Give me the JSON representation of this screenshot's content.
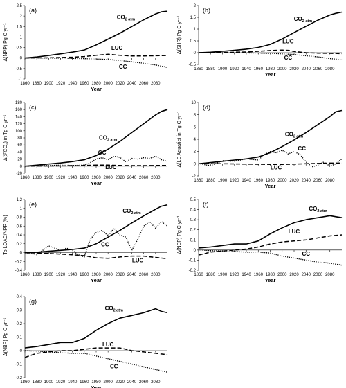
{
  "figure": {
    "xlabel": "Year",
    "series_labels": {
      "co2": "CO",
      "co2_sub": "2 atm",
      "luc": "LUC",
      "cc": "CC"
    }
  },
  "chart_data": [
    {
      "type": "line",
      "panel": "(a)",
      "ylabel": "Δ(NPP) Pg C yr⁻¹",
      "x_ticks": [
        1860,
        1880,
        1900,
        1920,
        1940,
        1960,
        1980,
        2000,
        2020,
        2040,
        2060,
        2080
      ],
      "y_ticks": [
        -1,
        -0.5,
        0,
        0.5,
        1,
        1.5,
        2,
        2.5
      ],
      "xlim": [
        1860,
        2100
      ],
      "ylim": [
        -1,
        2.5
      ],
      "series": [
        {
          "key": "co2",
          "style": "solid",
          "x": [
            1860,
            1880,
            1900,
            1920,
            1940,
            1960,
            1980,
            2000,
            2020,
            2040,
            2060,
            2080,
            2090,
            2100
          ],
          "y": [
            0,
            0.05,
            0.12,
            0.2,
            0.28,
            0.38,
            0.62,
            0.9,
            1.18,
            1.5,
            1.82,
            2.1,
            2.2,
            2.23
          ]
        },
        {
          "key": "luc",
          "style": "dashed",
          "x": [
            1860,
            1900,
            1940,
            1960,
            1980,
            2000,
            2020,
            2040,
            2060,
            2080,
            2100
          ],
          "y": [
            0,
            0.01,
            0.04,
            0.07,
            0.13,
            0.18,
            0.13,
            0.1,
            0.1,
            0.11,
            0.12
          ]
        },
        {
          "key": "cc",
          "style": "dotted",
          "x": [
            1860,
            1900,
            1940,
            1960,
            1980,
            2000,
            2020,
            2040,
            2060,
            2080,
            2100
          ],
          "y": [
            0,
            0,
            -0.02,
            -0.03,
            -0.05,
            -0.07,
            -0.12,
            -0.18,
            -0.25,
            -0.33,
            -0.45
          ]
        }
      ]
    },
    {
      "type": "line",
      "panel": "(b)",
      "ylabel": "Δ(SHR) Pg C yr⁻¹",
      "x_ticks": [
        1860,
        1880,
        1900,
        1920,
        1940,
        1960,
        1980,
        2000,
        2020,
        2040,
        2060,
        2080
      ],
      "y_ticks": [
        -0.5,
        0,
        0.5,
        1,
        1.5,
        2
      ],
      "xlim": [
        1860,
        2100
      ],
      "ylim": [
        -0.5,
        2
      ],
      "series": [
        {
          "key": "co2",
          "style": "solid",
          "x": [
            1860,
            1880,
            1900,
            1920,
            1940,
            1960,
            1980,
            2000,
            2020,
            2040,
            2060,
            2080,
            2090,
            2100
          ],
          "y": [
            0,
            0.02,
            0.06,
            0.1,
            0.15,
            0.22,
            0.35,
            0.58,
            0.85,
            1.12,
            1.38,
            1.6,
            1.67,
            1.72
          ]
        },
        {
          "key": "luc",
          "style": "dashed",
          "x": [
            1860,
            1900,
            1940,
            1960,
            1980,
            2000,
            2010,
            2020,
            2040,
            2060,
            2080,
            2100
          ],
          "y": [
            0,
            0.01,
            0.03,
            0.06,
            0.09,
            0.11,
            0.1,
            0.05,
            0,
            -0.02,
            -0.03,
            -0.04
          ]
        },
        {
          "key": "cc",
          "style": "dotted",
          "x": [
            1860,
            1900,
            1940,
            1980,
            2000,
            2020,
            2040,
            2060,
            2080,
            2100
          ],
          "y": [
            0,
            0,
            -0.01,
            -0.03,
            -0.05,
            -0.08,
            -0.13,
            -0.18,
            -0.25,
            -0.3
          ]
        }
      ]
    },
    {
      "type": "line",
      "panel": "(c)",
      "ylabel": "Δ(ℱCO₂) in Tg C yr⁻¹",
      "x_ticks": [
        1860,
        1880,
        1900,
        1920,
        1940,
        1960,
        1980,
        2000,
        2020,
        2040,
        2060,
        2080
      ],
      "y_ticks": [
        -20,
        0,
        20,
        40,
        60,
        80,
        100,
        120,
        140,
        160,
        180
      ],
      "xlim": [
        1860,
        2100
      ],
      "ylim": [
        -20,
        180
      ],
      "series": [
        {
          "key": "co2",
          "style": "solid",
          "x": [
            1860,
            1880,
            1900,
            1920,
            1940,
            1960,
            1980,
            2000,
            2020,
            2040,
            2060,
            2080,
            2090,
            2100
          ],
          "y": [
            0,
            3,
            6,
            9,
            13,
            18,
            30,
            48,
            70,
            95,
            120,
            145,
            155,
            160
          ]
        },
        {
          "key": "luc",
          "style": "dashed",
          "x": [
            1860,
            1900,
            1940,
            1960,
            1980,
            2000,
            2020,
            2040,
            2060,
            2080,
            2100
          ],
          "y": [
            0,
            0.5,
            1,
            2,
            3,
            3,
            2,
            1.5,
            1.5,
            2,
            2
          ]
        },
        {
          "key": "cc",
          "style": "dotted",
          "x": [
            1860,
            1880,
            1900,
            1920,
            1940,
            1960,
            1970,
            1980,
            1990,
            2000,
            2010,
            2020,
            2030,
            2040,
            2050,
            2060,
            2070,
            2080,
            2090,
            2100
          ],
          "y": [
            0,
            1,
            2,
            3,
            2,
            3,
            10,
            20,
            24,
            18,
            28,
            25,
            12,
            22,
            20,
            24,
            22,
            28,
            18,
            14
          ]
        }
      ]
    },
    {
      "type": "line",
      "panel": "(d)",
      "ylabel": "Δ(LE Aquatic) in Tg C yr⁻¹",
      "x_ticks": [
        1860,
        1880,
        1900,
        1920,
        1940,
        1960,
        1980,
        2000,
        2020,
        2040,
        2060,
        2080
      ],
      "y_ticks": [
        -2,
        0,
        2,
        4,
        6,
        8,
        10
      ],
      "xlim": [
        1860,
        2100
      ],
      "ylim": [
        -2,
        10
      ],
      "series": [
        {
          "key": "co2",
          "style": "solid",
          "x": [
            1860,
            1880,
            1900,
            1920,
            1940,
            1960,
            1980,
            2000,
            2020,
            2040,
            2060,
            2080,
            2090,
            2100
          ],
          "y": [
            0,
            0.2,
            0.4,
            0.6,
            0.8,
            1.1,
            1.8,
            2.8,
            3.9,
            5.1,
            6.4,
            7.7,
            8.5,
            8.7
          ]
        },
        {
          "key": "luc",
          "style": "dashed",
          "x": [
            1860,
            1900,
            1940,
            1980,
            2000,
            2020,
            2040,
            2060,
            2080,
            2100
          ],
          "y": [
            0,
            0,
            -0.05,
            -0.1,
            -0.1,
            -0.05,
            0,
            0.05,
            0.1,
            0.1
          ]
        },
        {
          "key": "cc",
          "style": "dotted",
          "x": [
            1860,
            1880,
            1900,
            1920,
            1940,
            1960,
            1970,
            1980,
            1990,
            2000,
            2010,
            2020,
            2030,
            2040,
            2050,
            2060,
            2070,
            2080,
            2090,
            2100
          ],
          "y": [
            0,
            -0.3,
            0.5,
            0.4,
            0.8,
            0.6,
            1.5,
            2,
            1.8,
            2.2,
            1.6,
            2,
            1.5,
            0.3,
            -0.5,
            -0.2,
            0.3,
            -0.4,
            0,
            0.8
          ]
        }
      ]
    },
    {
      "type": "line",
      "panel": "(e)",
      "ylabel": "To LOAC/NPP (%)",
      "x_ticks": [
        1860,
        1880,
        1900,
        1920,
        1940,
        1960,
        1980,
        2000,
        2020,
        2040,
        2060,
        2080
      ],
      "y_ticks": [
        -0.4,
        -0.2,
        0,
        0.2,
        0.4,
        0.6,
        0.8,
        1,
        1.2
      ],
      "xlim": [
        1860,
        2100
      ],
      "ylim": [
        -0.4,
        1.2
      ],
      "series": [
        {
          "key": "co2",
          "style": "solid",
          "x": [
            1860,
            1880,
            1900,
            1920,
            1940,
            1960,
            1980,
            2000,
            2020,
            2040,
            2060,
            2080,
            2090,
            2100
          ],
          "y": [
            0,
            0.01,
            0.03,
            0.05,
            0.07,
            0.1,
            0.2,
            0.35,
            0.5,
            0.67,
            0.83,
            0.98,
            1.05,
            1.08
          ]
        },
        {
          "key": "luc",
          "style": "dashed",
          "x": [
            1860,
            1900,
            1940,
            1960,
            1980,
            2000,
            2020,
            2040,
            2060,
            2080,
            2100
          ],
          "y": [
            0,
            -0.02,
            -0.05,
            -0.07,
            -0.12,
            -0.13,
            -0.1,
            -0.08,
            -0.08,
            -0.11,
            -0.14
          ]
        },
        {
          "key": "cc",
          "style": "dotted",
          "x": [
            1860,
            1880,
            1900,
            1910,
            1920,
            1930,
            1940,
            1950,
            1960,
            1970,
            1980,
            1990,
            2000,
            2010,
            2020,
            2030,
            2040,
            2050,
            2060,
            2070,
            2080,
            2090,
            2100
          ],
          "y": [
            0,
            -0.05,
            0.15,
            0.1,
            0.05,
            0.1,
            0.05,
            -0.05,
            -0.1,
            0.3,
            0.45,
            0.5,
            0.38,
            0.55,
            0.4,
            0.35,
            0.05,
            0.3,
            0.6,
            0.7,
            0.55,
            0.7,
            0.6
          ]
        }
      ]
    },
    {
      "type": "line",
      "panel": "(f)",
      "ylabel": "Δ(NEP) Pg C yr⁻¹",
      "x_ticks": [
        1860,
        1880,
        1900,
        1920,
        1940,
        1960,
        1980,
        2000,
        2020,
        2040,
        2060,
        2080
      ],
      "y_ticks": [
        -0.2,
        -0.1,
        0,
        0.1,
        0.2,
        0.3,
        0.4,
        0.5
      ],
      "xlim": [
        1860,
        2100
      ],
      "ylim": [
        -0.2,
        0.5
      ],
      "series": [
        {
          "key": "co2",
          "style": "solid",
          "x": [
            1860,
            1880,
            1900,
            1920,
            1940,
            1960,
            1980,
            2000,
            2020,
            2040,
            2060,
            2080,
            2090,
            2100
          ],
          "y": [
            0.02,
            0.03,
            0.045,
            0.06,
            0.06,
            0.09,
            0.16,
            0.22,
            0.27,
            0.3,
            0.32,
            0.34,
            0.33,
            0.32
          ]
        },
        {
          "key": "luc",
          "style": "dashed",
          "x": [
            1860,
            1880,
            1900,
            1920,
            1940,
            1960,
            1980,
            2000,
            2020,
            2040,
            2060,
            2080,
            2100
          ],
          "y": [
            -0.05,
            -0.02,
            -0.01,
            0,
            0.01,
            0.03,
            0.06,
            0.08,
            0.09,
            0.1,
            0.12,
            0.14,
            0.15
          ]
        },
        {
          "key": "cc",
          "style": "dotted",
          "x": [
            1860,
            1900,
            1940,
            1960,
            1980,
            2000,
            2020,
            2040,
            2060,
            2080,
            2100
          ],
          "y": [
            0,
            -0.01,
            -0.02,
            -0.02,
            -0.03,
            -0.06,
            -0.08,
            -0.1,
            -0.12,
            -0.13,
            -0.15
          ]
        }
      ]
    },
    {
      "type": "line",
      "panel": "(g)",
      "ylabel": "Δ(NBP) Pg C yr⁻¹",
      "x_ticks": [
        1860,
        1880,
        1900,
        1920,
        1940,
        1960,
        1980,
        2000,
        2020,
        2040,
        2060,
        2080
      ],
      "y_ticks": [
        -0.2,
        -0.1,
        0,
        0.1,
        0.2,
        0.3,
        0.4
      ],
      "xlim": [
        1860,
        2100
      ],
      "ylim": [
        -0.2,
        0.4
      ],
      "series": [
        {
          "key": "co2",
          "style": "solid",
          "x": [
            1860,
            1880,
            1900,
            1920,
            1940,
            1960,
            1980,
            2000,
            2020,
            2040,
            2060,
            2080,
            2090,
            2100
          ],
          "y": [
            0.02,
            0.03,
            0.045,
            0.06,
            0.06,
            0.09,
            0.15,
            0.2,
            0.24,
            0.26,
            0.28,
            0.31,
            0.29,
            0.28
          ]
        },
        {
          "key": "luc",
          "style": "dashed",
          "x": [
            1860,
            1880,
            1900,
            1920,
            1940,
            1960,
            1980,
            2000,
            2020,
            2040,
            2060,
            2080,
            2100
          ],
          "y": [
            -0.05,
            -0.02,
            -0.01,
            0,
            0,
            0.01,
            0.02,
            0.02,
            0.02,
            0,
            -0.01,
            -0.02,
            -0.03
          ]
        },
        {
          "key": "cc",
          "style": "dotted",
          "x": [
            1860,
            1900,
            1940,
            1960,
            1980,
            2000,
            2020,
            2040,
            2060,
            2080,
            2100
          ],
          "y": [
            0,
            -0.01,
            -0.02,
            -0.02,
            -0.04,
            -0.06,
            -0.08,
            -0.1,
            -0.12,
            -0.14,
            -0.16
          ]
        }
      ]
    }
  ]
}
